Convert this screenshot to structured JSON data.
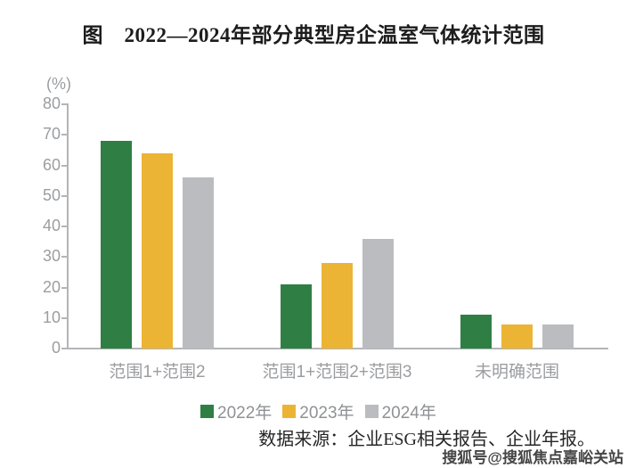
{
  "title": "图　2022—2024年部分典型房企温室气体统计范围",
  "y_axis_unit": "(%)",
  "source_note": "数据来源：企业ESG相关报告、企业年报。",
  "watermark": "搜狐号@搜狐焦点嘉峪关站",
  "chart_data": {
    "type": "bar",
    "title": "图　2022—2024年部分典型房企温室气体统计范围",
    "categories": [
      "范围1+范围2",
      "范围1+范围2+范围3",
      "未明确范围"
    ],
    "series": [
      {
        "name": "2022年",
        "color": "#2f7f45",
        "values": [
          68,
          21,
          11
        ]
      },
      {
        "name": "2023年",
        "color": "#ecb434",
        "values": [
          64,
          28,
          8
        ]
      },
      {
        "name": "2024年",
        "color": "#babcc0",
        "values": [
          56,
          36,
          8
        ]
      }
    ],
    "ylabel": "(%)",
    "ylim": [
      0,
      80
    ],
    "yticks": [
      0,
      10,
      20,
      30,
      40,
      50,
      60,
      70,
      80
    ],
    "grid": false,
    "legend_position": "bottom"
  },
  "colors": {
    "axis": "#b3b5b7",
    "tick_label": "#9b9da0",
    "category_label": "#9b9da0",
    "legend_text": "#8f9194",
    "title_text": "#1c1c1c",
    "source_text": "#262626",
    "watermark_text": "#454545",
    "background": "#ffffff"
  }
}
